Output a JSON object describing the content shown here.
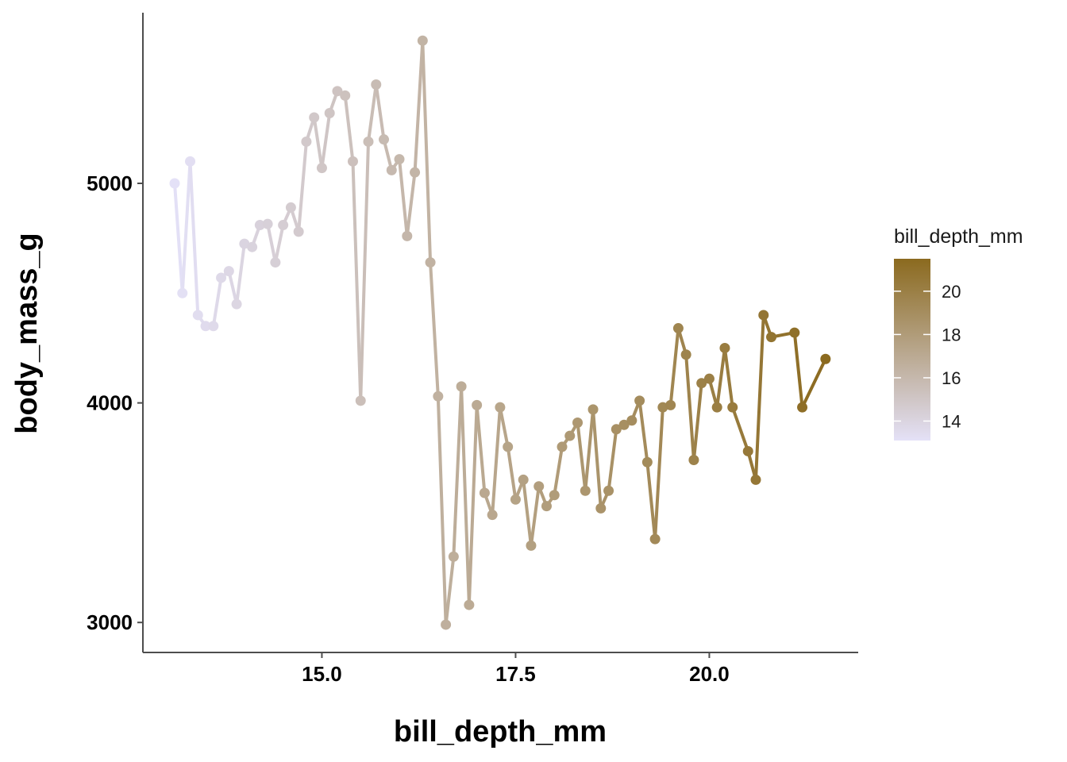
{
  "chart_data": {
    "type": "line",
    "title": "",
    "xlabel": "bill_depth_mm",
    "ylabel": "body_mass_g",
    "xlim": [
      13.1,
      21.5
    ],
    "ylim": [
      2900,
      5700
    ],
    "x_ticks": [
      15.0,
      17.5,
      20.0
    ],
    "x_tick_labels": [
      "15.0",
      "17.5",
      "20.0"
    ],
    "y_ticks": [
      3000,
      4000,
      5000
    ],
    "y_tick_labels": [
      "3000",
      "4000",
      "5000"
    ],
    "grid": false,
    "markers": true,
    "legend": {
      "title": "bill_depth_mm",
      "type": "colorbar",
      "position": "right",
      "range": [
        13.1,
        21.5
      ],
      "ticks": [
        14,
        16,
        18,
        20
      ],
      "tick_labels": [
        "14",
        "16",
        "18",
        "20"
      ],
      "color_low": "#e4e1f7",
      "color_high": "#8b6a1f"
    },
    "x": [
      13.1,
      13.2,
      13.3,
      13.4,
      13.5,
      13.6,
      13.7,
      13.8,
      13.9,
      14.0,
      14.1,
      14.2,
      14.3,
      14.4,
      14.5,
      14.6,
      14.7,
      14.8,
      14.9,
      15.0,
      15.1,
      15.2,
      15.3,
      15.4,
      15.5,
      15.6,
      15.7,
      15.8,
      15.9,
      16.0,
      16.1,
      16.2,
      16.3,
      16.4,
      16.5,
      16.6,
      16.7,
      16.8,
      16.9,
      17.0,
      17.1,
      17.2,
      17.3,
      17.4,
      17.5,
      17.6,
      17.7,
      17.8,
      17.9,
      18.0,
      18.1,
      18.2,
      18.3,
      18.4,
      18.5,
      18.6,
      18.7,
      18.8,
      18.9,
      19.0,
      19.1,
      19.2,
      19.3,
      19.4,
      19.5,
      19.6,
      19.7,
      19.8,
      19.9,
      20.0,
      20.1,
      20.2,
      20.3,
      20.5,
      20.6,
      20.7,
      20.8,
      21.1,
      21.2,
      21.5
    ],
    "y": [
      5000,
      4500,
      5100,
      4400,
      4350,
      4350,
      4570,
      4600,
      4450,
      4725,
      4710,
      4810,
      4815,
      4640,
      4810,
      4890,
      4780,
      5190,
      5300,
      5070,
      5320,
      5420,
      5400,
      5100,
      4010,
      5190,
      5450,
      5200,
      5060,
      5110,
      4760,
      5050,
      5650,
      4640,
      4030,
      2990,
      3300,
      4075,
      3080,
      3990,
      3590,
      3490,
      3980,
      3800,
      3560,
      3650,
      3350,
      3620,
      3530,
      3580,
      3800,
      3850,
      3910,
      3600,
      3970,
      3520,
      3600,
      3880,
      3900,
      3920,
      4010,
      3730,
      3380,
      3980,
      3990,
      4340,
      4220,
      3740,
      4090,
      4110,
      3980,
      4250,
      3980,
      3780,
      3650,
      4400,
      4300,
      4320,
      3980,
      4200
    ]
  }
}
